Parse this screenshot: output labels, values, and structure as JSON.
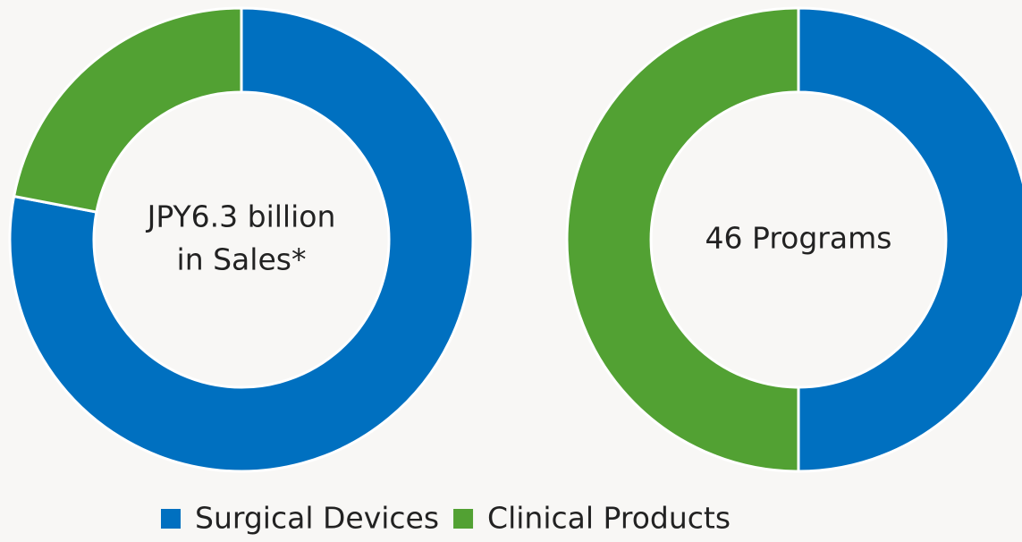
{
  "chart_data": [
    {
      "type": "pie",
      "donut": true,
      "center_label": [
        "JPY6.3 billion",
        "in Sales*"
      ],
      "values": [
        78,
        22
      ]
    },
    {
      "type": "pie",
      "donut": true,
      "center_label": [
        "46 Programs"
      ],
      "values": [
        50,
        50
      ]
    }
  ],
  "legend": {
    "items": [
      {
        "name": "Surgical Devices",
        "color": "#0070c0"
      },
      {
        "name": "Clinical Products",
        "color": "#52a133"
      }
    ]
  }
}
